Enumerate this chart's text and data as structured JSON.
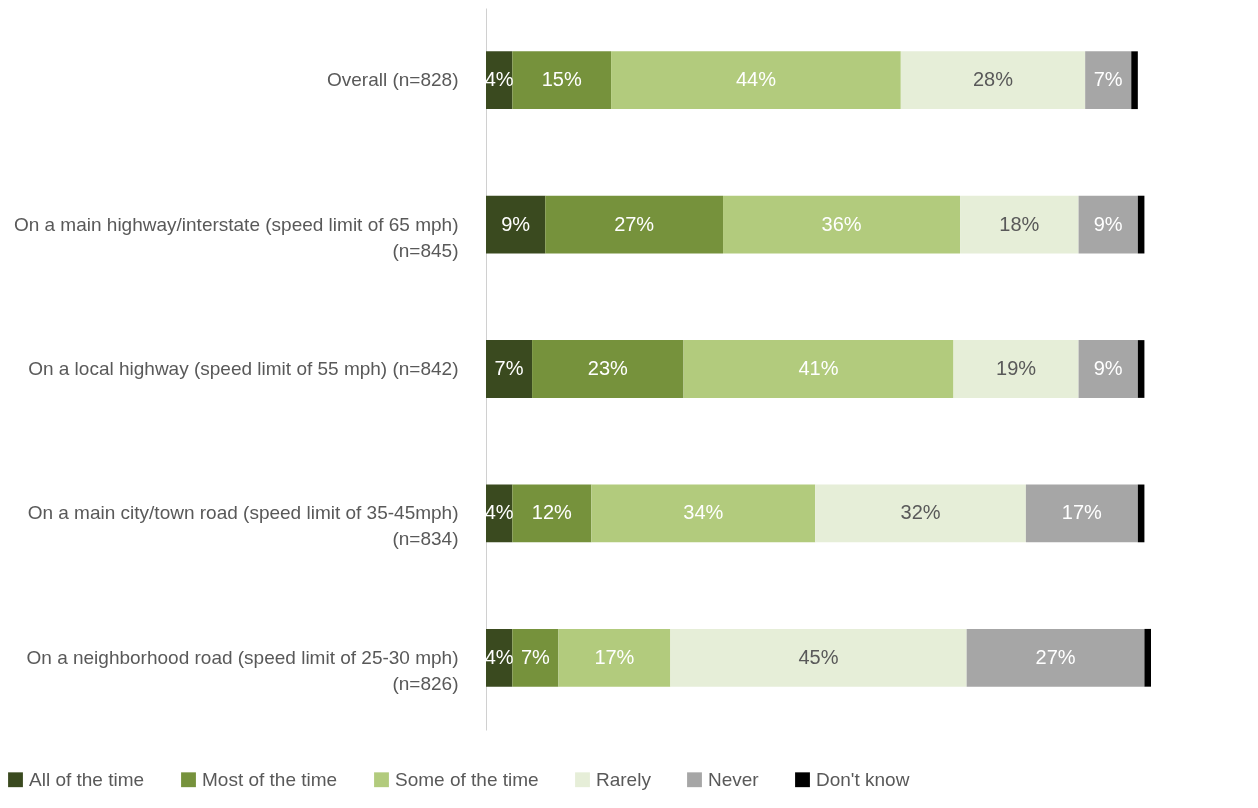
{
  "chart_data": {
    "type": "bar",
    "orientation": "horizontal",
    "stacked": true,
    "legend": "bottom",
    "categories": [
      "Overall (n=828)",
      "On a main highway/interstate (speed limit of 65 mph) (n=845)",
      "On a local highway (speed limit of 55 mph) (n=842)",
      "On a main city/town road (speed limit of 35-45mph) (n=834)",
      "On a neighborhood road (speed limit of 25-30 mph) (n=826)"
    ],
    "series": [
      {
        "name": "All of the time",
        "color": "#3a4a1f",
        "values": [
          4,
          9,
          7,
          4,
          4
        ],
        "value_labels": [
          "4%",
          "9%",
          "7%",
          "4%",
          "4%"
        ]
      },
      {
        "name": "Most of the time",
        "color": "#76923c",
        "values": [
          15,
          27,
          23,
          12,
          7
        ],
        "value_labels": [
          "15%",
          "27%",
          "23%",
          "12%",
          "7%"
        ]
      },
      {
        "name": "Some of the time",
        "color": "#b2cb7d",
        "values": [
          44,
          36,
          41,
          34,
          17
        ],
        "value_labels": [
          "44%",
          "36%",
          "41%",
          "34%",
          "17%"
        ]
      },
      {
        "name": "Rarely",
        "color": "#e6eed8",
        "values": [
          28,
          18,
          19,
          32,
          45
        ],
        "value_labels": [
          "28%",
          "18%",
          "19%",
          "32%",
          "45%"
        ]
      },
      {
        "name": "Never",
        "color": "#a6a6a6",
        "values": [
          7,
          9,
          9,
          17,
          27
        ],
        "value_labels": [
          "7%",
          "9%",
          "9%",
          "17%",
          "27%"
        ]
      },
      {
        "name": "Don't know",
        "color": "#000000",
        "values": [
          1,
          1,
          1,
          1,
          1
        ],
        "value_labels": [
          null,
          null,
          null,
          null,
          null
        ]
      }
    ]
  }
}
